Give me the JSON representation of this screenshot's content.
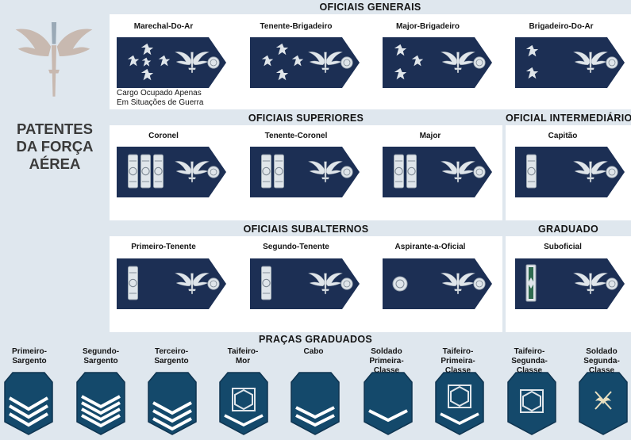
{
  "title": {
    "line1": "PATENTES",
    "line2": "DA FORÇA",
    "line3": "AÉREA"
  },
  "colors": {
    "navy": "#1c2f54",
    "silver": "#dfe5ea",
    "band": "#dfe7ee",
    "chevron_navy": "#14496b"
  },
  "sections": {
    "generais": "OFICIAIS GENERAIS",
    "superiores": "OFICIAIS SUPERIORES",
    "intermediario": "OFICIAL INTERMEDIÁRIO",
    "subalternos": "OFICIAIS SUBALTERNOS",
    "graduado": "GRADUADO",
    "pracas": "PRAÇAS GRADUADOS"
  },
  "ranks": {
    "marechal": "Marechal-Do-Ar",
    "tenente_brigadeiro": "Tenente-Brigadeiro",
    "major_brigadeiro": "Major-Brigadeiro",
    "brigadeiro": "Brigadeiro-Do-Ar",
    "coronel": "Coronel",
    "tenente_coronel": "Tenente-Coronel",
    "major": "Major",
    "capitao": "Capitão",
    "primeiro_tenente": "Primeiro-Tenente",
    "segundo_tenente": "Segundo-Tenente",
    "aspirante": "Aspirante-a-Oficial",
    "suboficial": "Suboficial"
  },
  "note": {
    "line1": "Cargo Ocupado Apenas",
    "line2": "Em Situações de Guerra"
  },
  "pracas": [
    {
      "l1": "Primeiro-",
      "l2": "Sargento",
      "l3": ""
    },
    {
      "l1": "Segundo-",
      "l2": "Sargento",
      "l3": ""
    },
    {
      "l1": "Terceiro-",
      "l2": "Sargento",
      "l3": ""
    },
    {
      "l1": "Taifeiro-",
      "l2": "Mor",
      "l3": ""
    },
    {
      "l1": "Cabo",
      "l2": "",
      "l3": ""
    },
    {
      "l1": "Soldado",
      "l2": "Primeira-",
      "l3": "Classe"
    },
    {
      "l1": "Taifeiro-",
      "l2": "Primeira-",
      "l3": "Classe"
    },
    {
      "l1": "Taifeiro-",
      "l2": "Segunda-",
      "l3": "Classe"
    },
    {
      "l1": "Soldado",
      "l2": "Segunda-",
      "l3": "Classe"
    }
  ]
}
